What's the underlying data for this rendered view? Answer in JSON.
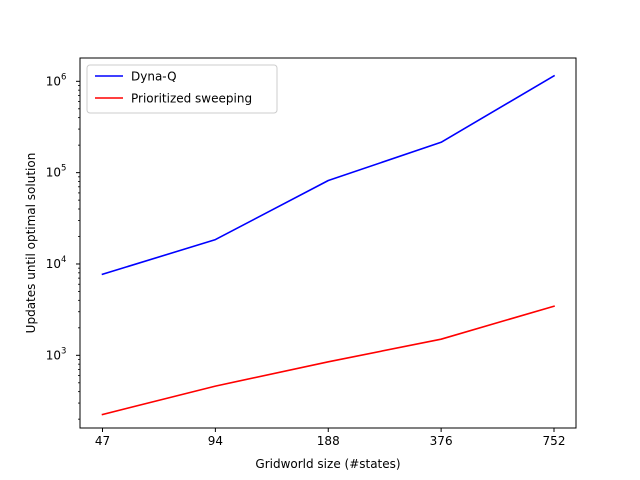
{
  "chart_data": {
    "type": "line",
    "title": "",
    "xlabel": "Gridworld size (#states)",
    "ylabel": "Updates until optimal solution",
    "x_scale": "categorical",
    "y_scale": "log",
    "categories": [
      "47",
      "94",
      "188",
      "376",
      "752"
    ],
    "ylim": [
      160,
      1800000
    ],
    "y_ticks": [
      {
        "base": "10",
        "exp": "3",
        "value": 1000
      },
      {
        "base": "10",
        "exp": "4",
        "value": 10000
      },
      {
        "base": "10",
        "exp": "5",
        "value": 100000
      },
      {
        "base": "10",
        "exp": "6",
        "value": 1000000
      }
    ],
    "grid": false,
    "legend": "top-left",
    "series": [
      {
        "name": "Dyna-Q",
        "color": "#0000ff",
        "values": [
          7700,
          18500,
          82000,
          215000,
          1150000
        ]
      },
      {
        "name": "Prioritized sweeping",
        "color": "#ff0000",
        "values": [
          225,
          460,
          850,
          1500,
          3450
        ]
      }
    ]
  }
}
